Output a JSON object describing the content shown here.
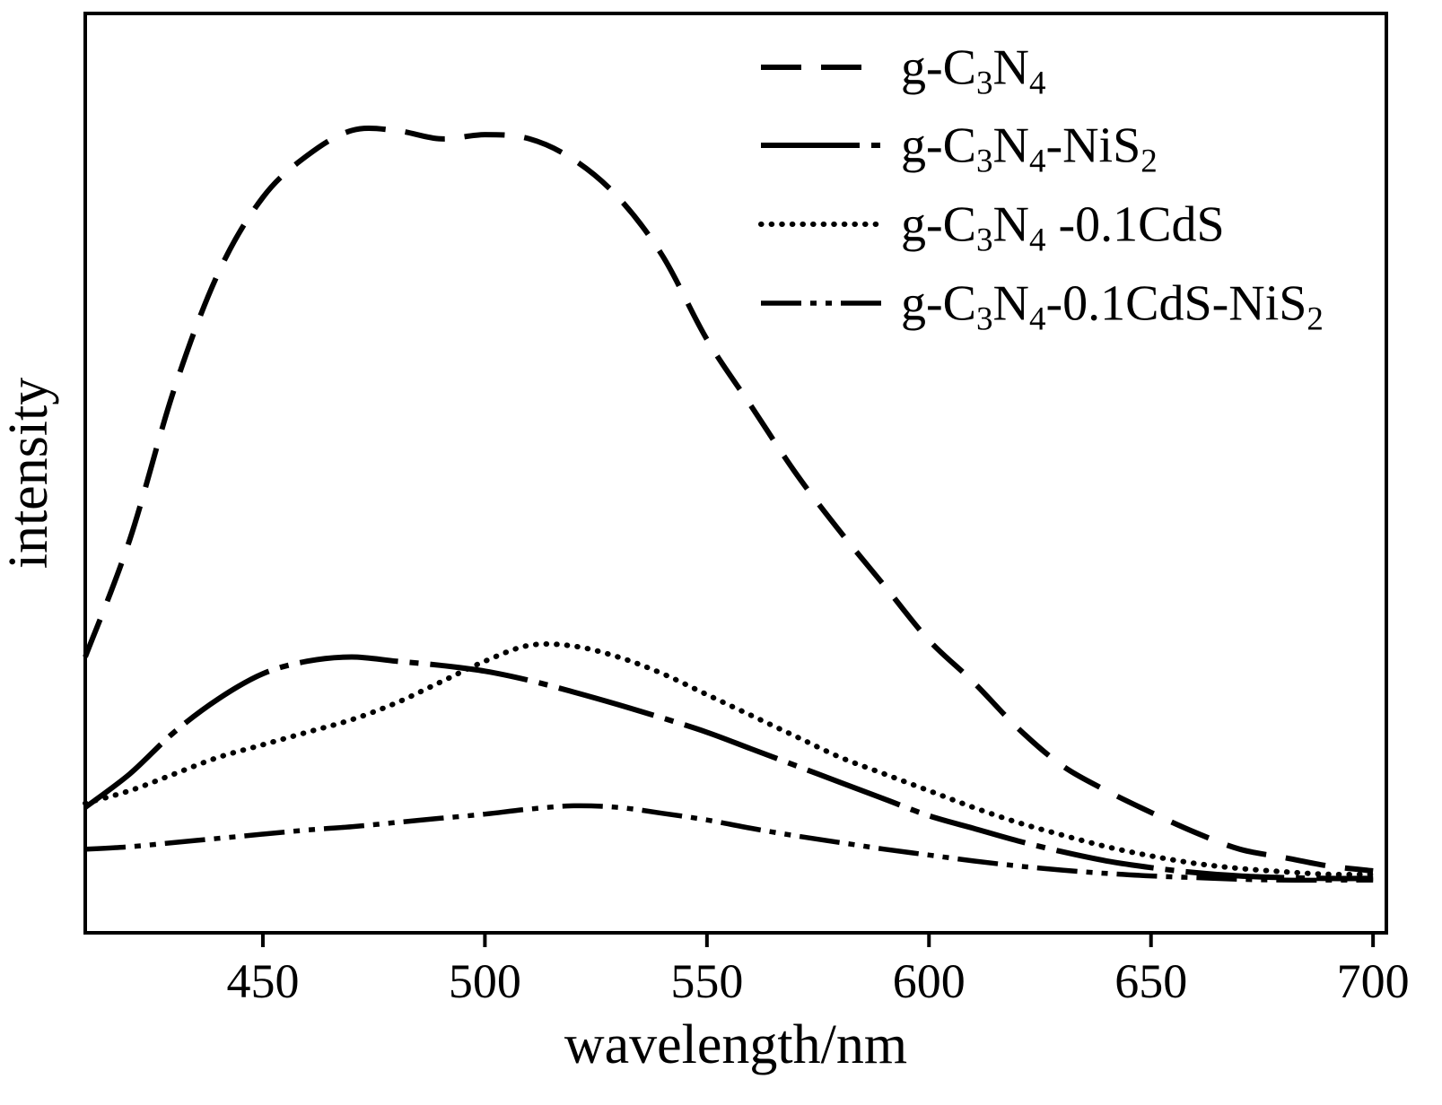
{
  "figure": {
    "xlabel": "wavelength/nm",
    "ylabel": "intensity"
  },
  "chart_data": {
    "type": "line",
    "title": "",
    "xlabel": "wavelength/nm",
    "ylabel": "intensity",
    "xlim": [
      410,
      703
    ],
    "ylim": [
      0,
      110
    ],
    "xticks": [
      450,
      500,
      550,
      600,
      650,
      700
    ],
    "yticks": [],
    "grid": false,
    "legend_position": "top-right",
    "line_color": "#000000",
    "x": [
      410,
      420,
      430,
      440,
      450,
      460,
      470,
      480,
      490,
      500,
      510,
      520,
      530,
      540,
      550,
      560,
      570,
      580,
      590,
      600,
      610,
      620,
      630,
      640,
      650,
      660,
      670,
      680,
      690,
      700
    ],
    "series": [
      {
        "name": "g-C_3N_4",
        "style": "dash",
        "values": [
          33,
          47,
          65,
          79,
          88,
          93,
          96,
          96,
          95,
          95.5,
          95,
          92.5,
          88,
          81,
          71,
          63,
          55,
          48,
          41.5,
          35,
          30,
          24.5,
          20,
          17,
          14.4,
          12,
          10,
          9,
          8,
          7.4
        ]
      },
      {
        "name": "g-C_3N_4-NiS_2",
        "style": "dashdot",
        "values": [
          15,
          19,
          24,
          28,
          31,
          32.5,
          33,
          32.5,
          32,
          31.3,
          30.2,
          28.8,
          27.3,
          25.7,
          24,
          22,
          20,
          18,
          16,
          14,
          12.5,
          11,
          9.7,
          8.6,
          7.8,
          7.2,
          6.8,
          6.6,
          6.5,
          6.5
        ]
      },
      {
        "name": "g-C_3N_4 -0.1CdS",
        "style": "dot",
        "values": [
          15.5,
          17,
          19,
          21,
          22.5,
          24,
          25.5,
          27.5,
          30,
          32.5,
          34.4,
          34.3,
          33,
          31,
          28.5,
          26,
          23.5,
          21,
          19,
          17,
          15,
          13.2,
          11.7,
          10.3,
          9.2,
          8.3,
          7.7,
          7.3,
          7,
          7
        ]
      },
      {
        "name": "g-C_3N_4-0.1CdS-NiS_2",
        "style": "dashdotdot",
        "values": [
          10,
          10.3,
          10.8,
          11.3,
          11.8,
          12.3,
          12.7,
          13.2,
          13.7,
          14.2,
          14.8,
          15.2,
          15,
          14.3,
          13.5,
          12.5,
          11.6,
          10.8,
          10,
          9.3,
          8.6,
          8,
          7.5,
          7.1,
          6.8,
          6.6,
          6.4,
          6.3,
          6.3,
          6.3
        ]
      }
    ]
  }
}
